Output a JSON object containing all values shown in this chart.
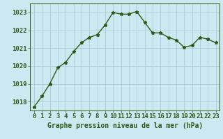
{
  "x": [
    0,
    1,
    2,
    3,
    4,
    5,
    6,
    7,
    8,
    9,
    10,
    11,
    12,
    13,
    14,
    15,
    16,
    17,
    18,
    19,
    20,
    21,
    22,
    23
  ],
  "y": [
    1017.7,
    1018.3,
    1019.0,
    1019.9,
    1020.2,
    1020.8,
    1021.3,
    1021.6,
    1021.75,
    1022.3,
    1023.0,
    1022.9,
    1022.9,
    1023.05,
    1022.45,
    1021.85,
    1021.85,
    1021.6,
    1021.45,
    1021.05,
    1021.15,
    1021.6,
    1021.5,
    1021.3
  ],
  "ylim": [
    1017.5,
    1023.5
  ],
  "yticks": [
    1018,
    1019,
    1020,
    1021,
    1022,
    1023
  ],
  "xticks": [
    0,
    1,
    2,
    3,
    4,
    5,
    6,
    7,
    8,
    9,
    10,
    11,
    12,
    13,
    14,
    15,
    16,
    17,
    18,
    19,
    20,
    21,
    22,
    23
  ],
  "line_color": "#2d5a1b",
  "marker": "*",
  "marker_size": 3.5,
  "bg_color": "#cce8f0",
  "grid_color": "#aaccd8",
  "xlabel": "Graphe pression niveau de la mer (hPa)",
  "xlabel_color": "#2d5a1b",
  "xlabel_fontsize": 7,
  "tick_color": "#2d5a1b",
  "tick_fontsize": 6.5,
  "line_width": 1.0
}
